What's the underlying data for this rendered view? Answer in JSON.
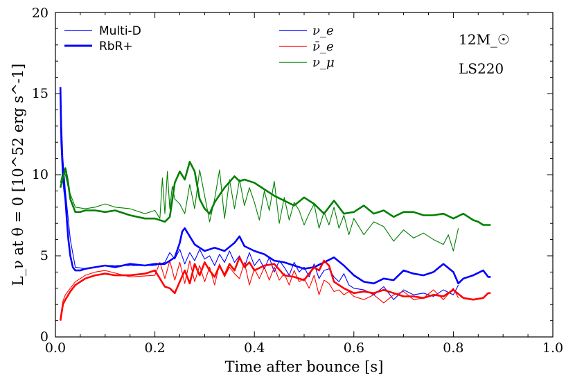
{
  "chart_data": {
    "type": "line",
    "title": "",
    "xlabel": "Time after bounce [s]",
    "ylabel": "L_ν at θ = 0 [10^52 erg s^-1]",
    "xlim": [
      0.0,
      1.0
    ],
    "ylim": [
      0,
      20
    ],
    "x_ticks": [
      "0.0",
      "0.2",
      "0.4",
      "0.6",
      "0.8",
      "1.0"
    ],
    "y_ticks": [
      "0",
      "5",
      "10",
      "15",
      "20"
    ],
    "legend_styles": [
      {
        "label": "Multi-D",
        "line": "thin"
      },
      {
        "label": "RbR+",
        "line": "thick"
      }
    ],
    "legend_species": [
      {
        "label": "ν_e",
        "color": "#0000ff"
      },
      {
        "label": "ν̄_e",
        "color": "#ff0000"
      },
      {
        "label": "ν_μ",
        "color": "#008000"
      }
    ],
    "annotations": [
      "12M_☉",
      "LS220"
    ],
    "series": [
      {
        "name": "ν_e RbR+",
        "color": "#0000ff",
        "style": "thick",
        "x": [
          0.01,
          0.012,
          0.015,
          0.018,
          0.02,
          0.023,
          0.026,
          0.03,
          0.035,
          0.04,
          0.05,
          0.06,
          0.08,
          0.1,
          0.12,
          0.15,
          0.18,
          0.2,
          0.22,
          0.24,
          0.25,
          0.255,
          0.26,
          0.27,
          0.28,
          0.3,
          0.32,
          0.34,
          0.36,
          0.37,
          0.38,
          0.4,
          0.42,
          0.44,
          0.46,
          0.48,
          0.5,
          0.52,
          0.54,
          0.56,
          0.58,
          0.6,
          0.62,
          0.64,
          0.66,
          0.68,
          0.7,
          0.72,
          0.74,
          0.76,
          0.78,
          0.8,
          0.81,
          0.82,
          0.84,
          0.86,
          0.87,
          0.875
        ],
        "y": [
          15.4,
          12.0,
          10.0,
          9.0,
          8.5,
          7.2,
          6.0,
          5.0,
          4.3,
          4.1,
          4.1,
          4.2,
          4.3,
          4.4,
          4.3,
          4.5,
          4.4,
          4.5,
          4.5,
          4.9,
          5.8,
          6.5,
          6.7,
          6.2,
          5.7,
          5.3,
          5.5,
          5.3,
          5.8,
          6.2,
          5.6,
          5.3,
          5.1,
          4.7,
          4.6,
          4.4,
          4.2,
          4.3,
          4.6,
          4.9,
          4.4,
          3.8,
          3.4,
          3.3,
          3.6,
          3.5,
          4.1,
          3.9,
          3.8,
          4.0,
          4.5,
          4.0,
          3.3,
          3.6,
          3.8,
          4.1,
          3.7,
          3.7
        ]
      },
      {
        "name": "ν_e Multi-D",
        "color": "#0000ff",
        "style": "thin",
        "x": [
          0.01,
          0.015,
          0.02,
          0.03,
          0.04,
          0.06,
          0.08,
          0.1,
          0.15,
          0.2,
          0.22,
          0.23,
          0.24,
          0.25,
          0.26,
          0.27,
          0.28,
          0.29,
          0.3,
          0.31,
          0.32,
          0.33,
          0.34,
          0.35,
          0.36,
          0.37,
          0.38,
          0.39,
          0.4,
          0.41,
          0.42,
          0.43,
          0.44,
          0.45,
          0.46,
          0.47,
          0.48,
          0.49,
          0.5,
          0.51,
          0.52,
          0.53,
          0.54,
          0.55,
          0.56,
          0.57,
          0.58,
          0.59,
          0.6,
          0.62,
          0.64,
          0.66,
          0.68,
          0.7,
          0.72,
          0.74,
          0.76,
          0.78,
          0.8,
          0.81
        ],
        "y": [
          15.0,
          11.0,
          9.0,
          6.0,
          4.3,
          4.2,
          4.3,
          4.4,
          4.4,
          4.4,
          4.6,
          5.2,
          4.8,
          5.4,
          4.5,
          5.2,
          4.7,
          5.4,
          4.8,
          5.0,
          4.4,
          5.1,
          4.6,
          5.3,
          4.6,
          5.0,
          4.3,
          5.2,
          4.4,
          4.8,
          4.2,
          4.9,
          4.0,
          4.7,
          4.3,
          3.8,
          4.6,
          4.0,
          4.3,
          3.7,
          4.5,
          3.6,
          4.1,
          4.2,
          3.7,
          3.4,
          3.9,
          3.2,
          3.0,
          2.9,
          2.6,
          3.1,
          2.3,
          2.9,
          2.6,
          2.7,
          2.5,
          2.9,
          2.6,
          3.2
        ]
      },
      {
        "name": "ν̄_e RbR+",
        "color": "#ff0000",
        "style": "thick",
        "x": [
          0.01,
          0.015,
          0.02,
          0.03,
          0.04,
          0.06,
          0.08,
          0.1,
          0.12,
          0.15,
          0.18,
          0.2,
          0.22,
          0.23,
          0.24,
          0.25,
          0.26,
          0.27,
          0.28,
          0.29,
          0.3,
          0.31,
          0.32,
          0.33,
          0.34,
          0.35,
          0.36,
          0.37,
          0.38,
          0.39,
          0.4,
          0.42,
          0.44,
          0.46,
          0.48,
          0.5,
          0.52,
          0.53,
          0.54,
          0.55,
          0.56,
          0.58,
          0.6,
          0.62,
          0.64,
          0.66,
          0.68,
          0.7,
          0.72,
          0.74,
          0.76,
          0.78,
          0.8,
          0.82,
          0.84,
          0.86,
          0.87,
          0.875
        ],
        "y": [
          1.0,
          2.0,
          2.3,
          2.8,
          3.2,
          3.6,
          3.8,
          3.9,
          3.8,
          3.8,
          3.9,
          4.1,
          3.1,
          3.0,
          2.7,
          3.4,
          4.1,
          3.3,
          4.5,
          3.8,
          4.6,
          4.1,
          3.7,
          4.4,
          3.8,
          4.5,
          4.1,
          4.9,
          4.3,
          4.6,
          4.1,
          4.4,
          4.5,
          3.8,
          3.7,
          3.5,
          4.3,
          4.1,
          4.7,
          4.4,
          3.4,
          3.0,
          2.7,
          2.8,
          2.7,
          2.9,
          2.7,
          2.5,
          2.5,
          2.4,
          2.6,
          2.5,
          2.9,
          2.4,
          2.3,
          2.4,
          2.7,
          2.7
        ]
      },
      {
        "name": "ν̄_e Multi-D",
        "color": "#ff0000",
        "style": "thin",
        "x": [
          0.01,
          0.015,
          0.02,
          0.03,
          0.04,
          0.06,
          0.08,
          0.1,
          0.15,
          0.2,
          0.21,
          0.22,
          0.23,
          0.24,
          0.25,
          0.26,
          0.27,
          0.28,
          0.29,
          0.3,
          0.31,
          0.32,
          0.33,
          0.34,
          0.35,
          0.36,
          0.37,
          0.38,
          0.39,
          0.4,
          0.41,
          0.42,
          0.43,
          0.44,
          0.45,
          0.46,
          0.47,
          0.48,
          0.49,
          0.5,
          0.51,
          0.52,
          0.53,
          0.54,
          0.55,
          0.56,
          0.57,
          0.58,
          0.59,
          0.6,
          0.62,
          0.64,
          0.66,
          0.68,
          0.7,
          0.72,
          0.74,
          0.76,
          0.78,
          0.8,
          0.81
        ],
        "y": [
          1.2,
          2.2,
          2.6,
          3.0,
          3.4,
          3.8,
          4.0,
          4.1,
          3.7,
          3.8,
          4.6,
          3.6,
          4.7,
          3.5,
          4.6,
          3.3,
          4.7,
          3.4,
          4.4,
          3.4,
          4.3,
          3.2,
          4.5,
          3.7,
          4.3,
          3.9,
          3.6,
          4.6,
          3.2,
          4.2,
          3.6,
          4.3,
          3.5,
          4.3,
          3.5,
          3.9,
          3.2,
          4.1,
          3.4,
          3.6,
          3.0,
          3.8,
          2.6,
          3.5,
          3.3,
          2.8,
          2.9,
          2.6,
          2.8,
          2.5,
          2.3,
          2.6,
          2.1,
          2.6,
          2.8,
          2.3,
          2.4,
          2.9,
          2.3,
          3.0,
          2.4
        ]
      },
      {
        "name": "ν_μ RbR+",
        "color": "#008000",
        "style": "thick",
        "x": [
          0.01,
          0.015,
          0.02,
          0.025,
          0.03,
          0.04,
          0.05,
          0.06,
          0.08,
          0.1,
          0.12,
          0.15,
          0.18,
          0.2,
          0.22,
          0.23,
          0.24,
          0.25,
          0.26,
          0.27,
          0.28,
          0.29,
          0.3,
          0.31,
          0.32,
          0.34,
          0.36,
          0.37,
          0.38,
          0.4,
          0.42,
          0.44,
          0.46,
          0.48,
          0.5,
          0.52,
          0.54,
          0.56,
          0.58,
          0.6,
          0.62,
          0.64,
          0.66,
          0.68,
          0.7,
          0.72,
          0.74,
          0.76,
          0.78,
          0.8,
          0.82,
          0.84,
          0.85,
          0.86,
          0.87,
          0.875
        ],
        "y": [
          9.2,
          9.8,
          10.4,
          9.6,
          8.5,
          7.7,
          7.7,
          7.8,
          7.8,
          7.7,
          7.8,
          7.5,
          7.3,
          7.3,
          7.1,
          7.4,
          9.5,
          10.2,
          9.7,
          10.8,
          10.2,
          8.5,
          7.9,
          7.6,
          8.3,
          9.2,
          9.9,
          9.6,
          9.7,
          9.5,
          9.1,
          8.7,
          8.4,
          8.1,
          8.6,
          8.2,
          7.6,
          8.4,
          7.6,
          7.7,
          8.1,
          7.6,
          7.8,
          7.4,
          7.7,
          7.7,
          7.5,
          7.5,
          7.6,
          7.3,
          7.6,
          7.2,
          7.1,
          6.9,
          6.9,
          6.9
        ]
      },
      {
        "name": "ν_μ Multi-D",
        "color": "#008000",
        "style": "thin",
        "x": [
          0.01,
          0.015,
          0.02,
          0.025,
          0.03,
          0.04,
          0.06,
          0.08,
          0.1,
          0.12,
          0.15,
          0.18,
          0.2,
          0.21,
          0.215,
          0.22,
          0.225,
          0.23,
          0.235,
          0.24,
          0.25,
          0.26,
          0.27,
          0.28,
          0.29,
          0.3,
          0.31,
          0.32,
          0.33,
          0.34,
          0.35,
          0.36,
          0.37,
          0.38,
          0.39,
          0.4,
          0.41,
          0.42,
          0.43,
          0.44,
          0.45,
          0.46,
          0.47,
          0.48,
          0.49,
          0.5,
          0.51,
          0.52,
          0.53,
          0.54,
          0.55,
          0.56,
          0.57,
          0.58,
          0.59,
          0.6,
          0.62,
          0.64,
          0.66,
          0.68,
          0.7,
          0.72,
          0.74,
          0.76,
          0.78,
          0.79,
          0.8,
          0.81
        ],
        "y": [
          9.5,
          10.2,
          10.0,
          9.3,
          8.8,
          8.0,
          7.9,
          8.0,
          8.2,
          8.0,
          7.9,
          7.6,
          7.8,
          7.3,
          9.8,
          7.6,
          10.2,
          7.9,
          9.3,
          8.5,
          8.2,
          7.6,
          9.4,
          7.9,
          10.3,
          8.7,
          7.1,
          8.5,
          10.3,
          7.3,
          9.7,
          7.9,
          9.7,
          8.1,
          9.2,
          8.3,
          7.2,
          9.0,
          7.8,
          9.6,
          7.0,
          8.6,
          7.2,
          8.3,
          7.8,
          6.9,
          7.6,
          8.2,
          6.7,
          7.7,
          6.9,
          8.0,
          6.7,
          7.5,
          6.3,
          7.3,
          6.3,
          7.1,
          6.8,
          5.9,
          6.6,
          6.1,
          6.4,
          6.0,
          5.7,
          6.3,
          5.3,
          6.7
        ]
      }
    ]
  }
}
